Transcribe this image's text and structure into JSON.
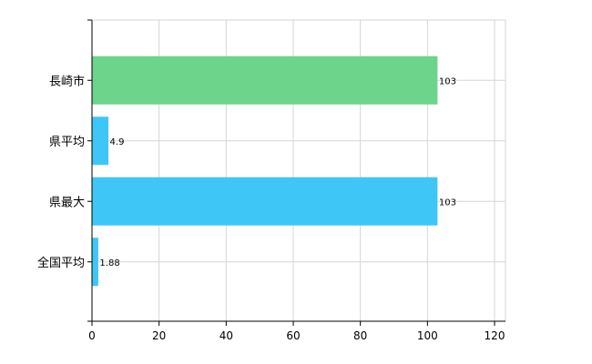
{
  "chart_data": {
    "type": "bar",
    "orientation": "horizontal",
    "categories": [
      "長崎市",
      "県平均",
      "県最大",
      "全国平均"
    ],
    "values": [
      103,
      4.9,
      103,
      1.88
    ],
    "value_labels": [
      "103",
      "4.9",
      "103",
      "1.88"
    ],
    "bar_colors": [
      "#6dd48c",
      "#3ec6f7",
      "#3ec6f7",
      "#3ec6f7"
    ],
    "xlim": [
      0,
      120
    ],
    "x_ticks": [
      "0",
      "20",
      "40",
      "60",
      "80",
      "100",
      "120"
    ],
    "grid": true,
    "title": "",
    "xlabel": "",
    "ylabel": ""
  }
}
